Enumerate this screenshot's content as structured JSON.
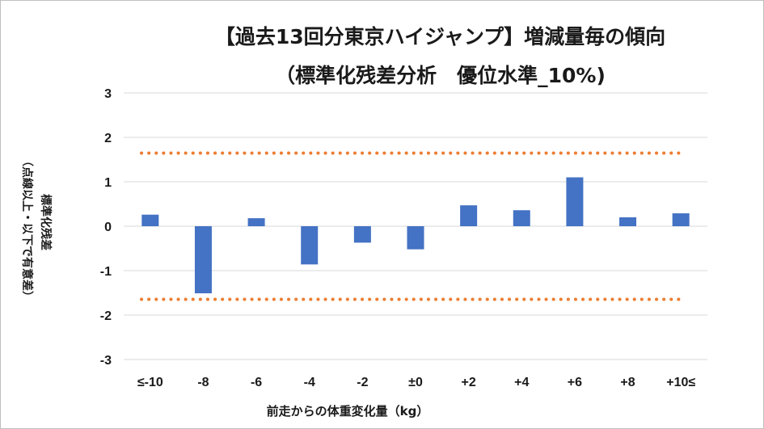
{
  "chart_data": {
    "type": "bar",
    "title": "【過去13回分東京ハイジャンプ】増減量毎の傾向",
    "subtitle": "（標準化残差分析　優位水準_10%)",
    "ylabel": "標準化残差",
    "ylabel_note": "（点線以上・以下で有意差）",
    "xlabel": "前走からの体重変化量（kg）",
    "categories": [
      "≤-10",
      "-8",
      "-6",
      "-4",
      "-2",
      "±0",
      "+2",
      "+4",
      "+6",
      "+8",
      "+10≤"
    ],
    "values": [
      0.26,
      -1.51,
      0.18,
      -0.86,
      -0.37,
      -0.52,
      0.47,
      0.36,
      1.1,
      0.2,
      0.29
    ],
    "ylim": [
      -3,
      3
    ],
    "yticks": [
      "3",
      "2",
      "1",
      "0",
      "-1",
      "-2",
      "-3"
    ],
    "ytick_values": [
      3,
      2,
      1,
      0,
      -1,
      -2,
      -3
    ],
    "threshold_values": [
      1.645,
      -1.645
    ],
    "grid": true,
    "bar_color": "#4472c4",
    "threshold_color": "#ed7d31",
    "grid_color": "#d9d9d9"
  }
}
